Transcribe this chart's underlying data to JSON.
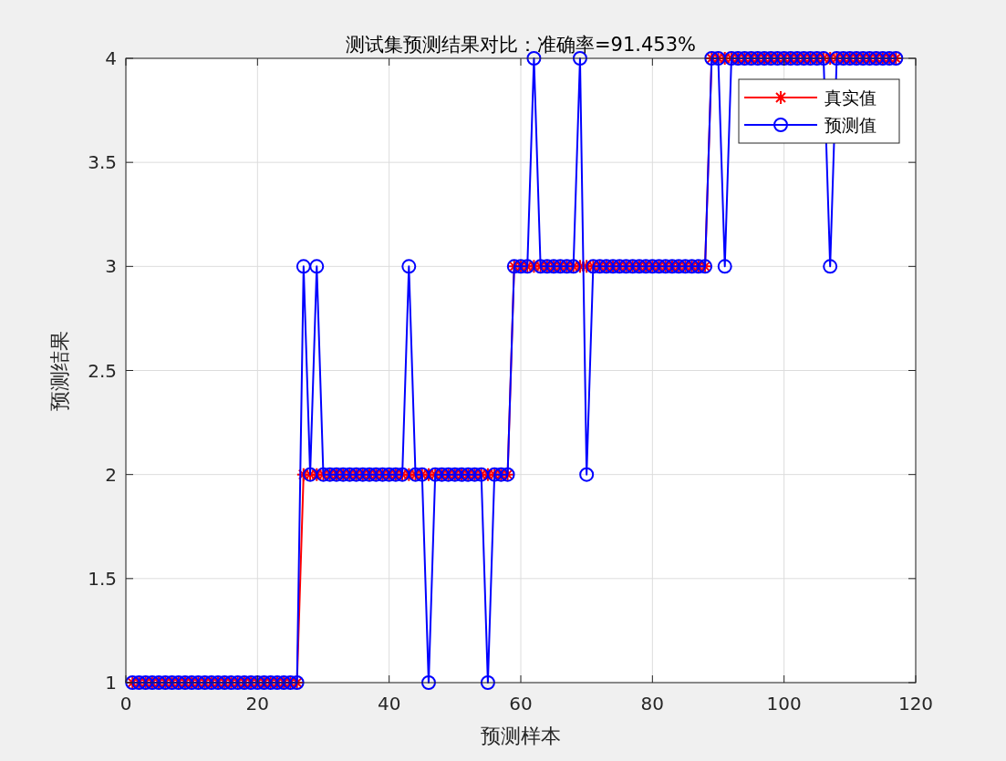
{
  "chart_data": {
    "type": "line",
    "title": "测试集预测结果对比：准确率=91.453%",
    "xlabel": "预测样本",
    "ylabel": "预测结果",
    "x": [
      1,
      2,
      3,
      4,
      5,
      6,
      7,
      8,
      9,
      10,
      11,
      12,
      13,
      14,
      15,
      16,
      17,
      18,
      19,
      20,
      21,
      22,
      23,
      24,
      25,
      26,
      27,
      28,
      29,
      30,
      31,
      32,
      33,
      34,
      35,
      36,
      37,
      38,
      39,
      40,
      41,
      42,
      43,
      44,
      45,
      46,
      47,
      48,
      49,
      50,
      51,
      52,
      53,
      54,
      55,
      56,
      57,
      58,
      59,
      60,
      61,
      62,
      63,
      64,
      65,
      66,
      67,
      68,
      69,
      70,
      71,
      72,
      73,
      74,
      75,
      76,
      77,
      78,
      79,
      80,
      81,
      82,
      83,
      84,
      85,
      86,
      87,
      88,
      89,
      90,
      91,
      92,
      93,
      94,
      95,
      96,
      97,
      98,
      99,
      100,
      101,
      102,
      103,
      104,
      105,
      106,
      107,
      108,
      109,
      110,
      111,
      112,
      113,
      114,
      115,
      116,
      117
    ],
    "series": [
      {
        "name": "真实值",
        "color": "#ff0000",
        "marker": "cross",
        "values": [
          1,
          1,
          1,
          1,
          1,
          1,
          1,
          1,
          1,
          1,
          1,
          1,
          1,
          1,
          1,
          1,
          1,
          1,
          1,
          1,
          1,
          1,
          1,
          1,
          1,
          1,
          2,
          2,
          2,
          2,
          2,
          2,
          2,
          2,
          2,
          2,
          2,
          2,
          2,
          2,
          2,
          2,
          2,
          2,
          2,
          2,
          2,
          2,
          2,
          2,
          2,
          2,
          2,
          2,
          2,
          2,
          2,
          2,
          3,
          3,
          3,
          3,
          3,
          3,
          3,
          3,
          3,
          3,
          3,
          3,
          3,
          3,
          3,
          3,
          3,
          3,
          3,
          3,
          3,
          3,
          3,
          3,
          3,
          3,
          3,
          3,
          3,
          3,
          4,
          4,
          4,
          4,
          4,
          4,
          4,
          4,
          4,
          4,
          4,
          4,
          4,
          4,
          4,
          4,
          4,
          4,
          4,
          4,
          4,
          4,
          4,
          4,
          4,
          4,
          4,
          4,
          4
        ]
      },
      {
        "name": "预测值",
        "color": "#0000ff",
        "marker": "circle",
        "values": [
          1,
          1,
          1,
          1,
          1,
          1,
          1,
          1,
          1,
          1,
          1,
          1,
          1,
          1,
          1,
          1,
          1,
          1,
          1,
          1,
          1,
          1,
          1,
          1,
          1,
          1,
          3,
          2,
          3,
          2,
          2,
          2,
          2,
          2,
          2,
          2,
          2,
          2,
          2,
          2,
          2,
          2,
          3,
          2,
          2,
          1,
          2,
          2,
          2,
          2,
          2,
          2,
          2,
          2,
          1,
          2,
          2,
          2,
          3,
          3,
          3,
          4,
          3,
          3,
          3,
          3,
          3,
          3,
          4,
          2,
          3,
          3,
          3,
          3,
          3,
          3,
          3,
          3,
          3,
          3,
          3,
          3,
          3,
          3,
          3,
          3,
          3,
          3,
          4,
          4,
          3,
          4,
          4,
          4,
          4,
          4,
          4,
          4,
          4,
          4,
          4,
          4,
          4,
          4,
          4,
          4,
          3,
          4,
          4,
          4,
          4,
          4,
          4,
          4,
          4,
          4,
          4
        ]
      }
    ],
    "xlim": [
      0,
      120
    ],
    "xticks": [
      0,
      20,
      40,
      60,
      80,
      100,
      120
    ],
    "ylim": [
      1,
      4
    ],
    "yticks": [
      1,
      1.5,
      2,
      2.5,
      3,
      3.5,
      4
    ],
    "grid": true,
    "legend": "top right"
  }
}
